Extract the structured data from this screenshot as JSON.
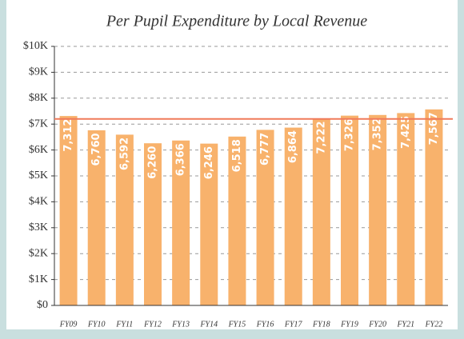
{
  "chart_data": {
    "type": "bar",
    "title": "Per Pupil Expenditure by Local Revenue",
    "categories": [
      "FY09",
      "FY10",
      "FY11",
      "FY12",
      "FY13",
      "FY14",
      "FY15",
      "FY16",
      "FY17",
      "FY18",
      "FY19",
      "FY20",
      "FY21",
      "FY22"
    ],
    "values": [
      7312,
      6760,
      6592,
      6260,
      6366,
      6246,
      6518,
      6777,
      6864,
      7222,
      7326,
      7352,
      7425,
      7567
    ],
    "value_labels": [
      "7,312",
      "6,760",
      "6,592",
      "6,260",
      "6,366",
      "6,246",
      "6,518",
      "6,777",
      "6,864",
      "7,222",
      "7,326",
      "7,352",
      "7,425",
      "7,567"
    ],
    "color": "#f8b26c",
    "ylim": [
      0,
      10000
    ],
    "yticks": [
      {
        "value": 0,
        "label": "$0"
      },
      {
        "value": 1000,
        "label": "$1K"
      },
      {
        "value": 2000,
        "label": "$2K"
      },
      {
        "value": 3000,
        "label": "$3K"
      },
      {
        "value": 4000,
        "label": "$4K"
      },
      {
        "value": 5000,
        "label": "$5K"
      },
      {
        "value": 6000,
        "label": "$6K"
      },
      {
        "value": 7000,
        "label": "$7K"
      },
      {
        "value": 8000,
        "label": "$8K"
      },
      {
        "value": 9000,
        "label": "$9K"
      },
      {
        "value": 10000,
        "label": "$10K"
      }
    ],
    "grid": true,
    "reference_line": {
      "value": 7200,
      "color": "#f07a5a"
    }
  }
}
